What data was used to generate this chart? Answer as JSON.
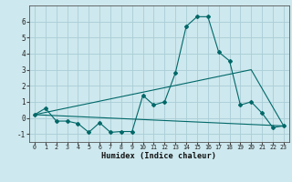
{
  "xlabel": "Humidex (Indice chaleur)",
  "background_color": "#cde8ee",
  "grid_color": "#aacdd6",
  "line_color": "#006868",
  "x_values": [
    0,
    1,
    2,
    3,
    4,
    5,
    6,
    7,
    8,
    9,
    10,
    11,
    12,
    13,
    14,
    15,
    16,
    17,
    18,
    19,
    20,
    21,
    22,
    23
  ],
  "line1": [
    0.2,
    0.6,
    -0.2,
    -0.2,
    -0.35,
    -0.9,
    -0.3,
    -0.9,
    -0.85,
    -0.85,
    1.4,
    0.8,
    1.0,
    2.8,
    5.7,
    6.3,
    6.3,
    4.1,
    3.55,
    0.8,
    1.0,
    0.3,
    -0.6,
    -0.5
  ],
  "line2_x": [
    0,
    20,
    23
  ],
  "line2_y": [
    0.2,
    3.0,
    -0.5
  ],
  "line3_x": [
    0,
    23
  ],
  "line3_y": [
    0.2,
    -0.5
  ],
  "ylim": [
    -1.5,
    7.0
  ],
  "xlim": [
    -0.5,
    23.5
  ],
  "yticks": [
    -1,
    0,
    1,
    2,
    3,
    4,
    5,
    6
  ],
  "xticks": [
    0,
    1,
    2,
    3,
    4,
    5,
    6,
    7,
    8,
    9,
    10,
    11,
    12,
    13,
    14,
    15,
    16,
    17,
    18,
    19,
    20,
    21,
    22,
    23
  ]
}
